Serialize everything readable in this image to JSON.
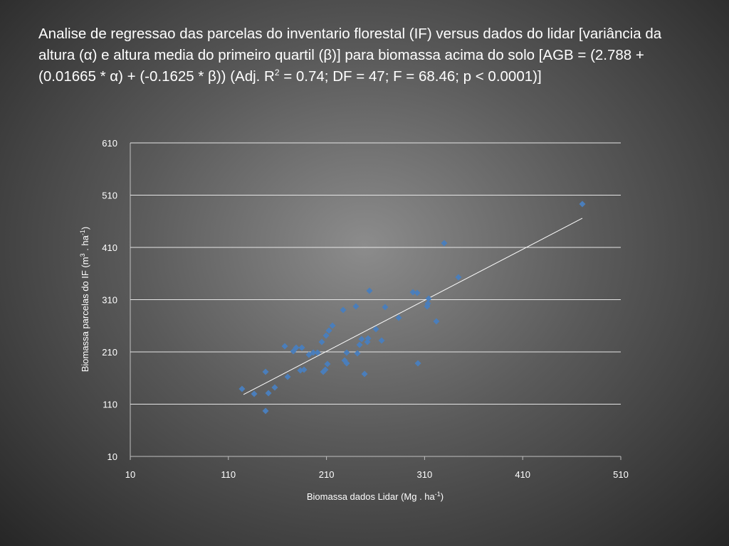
{
  "chart_data": {
    "type": "scatter",
    "title": [
      "Analise de regressao  das parcelas do inventario florestal  (IF) versus dados do lidar [variância da altura (α) e altura media do primeiro quartil (β)] para biomassa acima do solo [AGB = (2.788 + (0.01665 * α) + (-0.1625 * β)) (Adj. R",
      "2",
      " = 0.74; DF = 47; F = 68.46; p < 0.0001)]"
    ],
    "x_label": [
      "Biomassa dados Lidar  (Mg . ha",
      "-1",
      ")"
    ],
    "y_label": [
      "Biomassa  parcelas do IF  (m",
      "3",
      " . ha",
      "-1",
      ")"
    ],
    "xlim": [
      10,
      510
    ],
    "xticks": [
      10,
      110,
      210,
      310,
      410,
      510
    ],
    "ylim": [
      10,
      610
    ],
    "yticks": [
      10,
      110,
      210,
      310,
      410,
      510,
      610
    ],
    "grid": true,
    "color": "#4a7ebb",
    "x": [
      123.9,
      136.3,
      147.9,
      150.8,
      147.9,
      157.3,
      170.4,
      167.5,
      176.2,
      179.1,
      184.9,
      183.4,
      187.1,
      192.1,
      196.5,
      200.9,
      205.2,
      206.7,
      208.8,
      211.0,
      209.6,
      212.5,
      216.1,
      227.0,
      228.5,
      230.6,
      230.6,
      240.0,
      241.5,
      243.7,
      245.8,
      248.8,
      252.4,
      251.7,
      253.8,
      260.4,
      266.2,
      269.8,
      283.6,
      298.1,
      302.5,
      303.2,
      312.6,
      313.3,
      314.1,
      322.0,
      330.0,
      344.5,
      470.8
    ],
    "y": [
      139.3,
      129.7,
      171.9,
      131.1,
      97.1,
      142.0,
      162.4,
      220.9,
      211.4,
      218.2,
      218.2,
      174.6,
      176.0,
      204.6,
      208.6,
      208.6,
      229.0,
      171.9,
      176.0,
      186.9,
      241.3,
      250.8,
      260.3,
      290.3,
      193.7,
      188.2,
      208.6,
      297.1,
      207.3,
      223.6,
      234.5,
      167.8,
      235.9,
      229.0,
      327.0,
      253.5,
      231.8,
      295.7,
      275.3,
      324.3,
      322.9,
      188.2,
      297.1,
      302.5,
      312.0,
      268.5,
      418.2,
      352.9,
      493.0
    ],
    "trendline": {
      "color": "#ffffff",
      "x": [
        125.4,
        470.8
      ],
      "y": [
        128.4,
        465.8
      ]
    }
  }
}
